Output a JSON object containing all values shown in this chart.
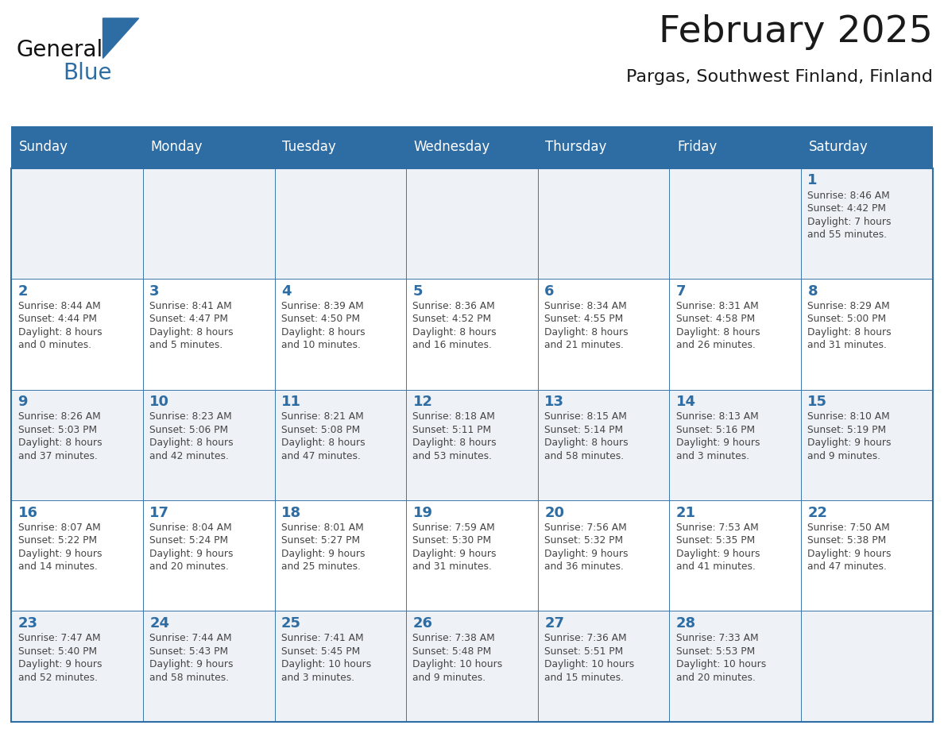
{
  "title": "February 2025",
  "subtitle": "Pargas, Southwest Finland, Finland",
  "days_of_week": [
    "Sunday",
    "Monday",
    "Tuesday",
    "Wednesday",
    "Thursday",
    "Friday",
    "Saturday"
  ],
  "header_bg": "#2e6da4",
  "header_text": "#ffffff",
  "cell_bg_odd": "#eef2f7",
  "cell_bg_even": "#ffffff",
  "border_color": "#2e6da4",
  "title_color": "#1a1a1a",
  "subtitle_color": "#1a1a1a",
  "day_num_color": "#2e6da4",
  "cell_text_color": "#444444",
  "logo_general_color": "#111111",
  "logo_blue_color": "#2e6da4",
  "calendar": [
    [
      null,
      null,
      null,
      null,
      null,
      null,
      {
        "day": 1,
        "sunrise": "8:46 AM",
        "sunset": "4:42 PM",
        "daylight_h": "7 hours",
        "daylight_m": "and 55 minutes."
      }
    ],
    [
      {
        "day": 2,
        "sunrise": "8:44 AM",
        "sunset": "4:44 PM",
        "daylight_h": "8 hours",
        "daylight_m": "and 0 minutes."
      },
      {
        "day": 3,
        "sunrise": "8:41 AM",
        "sunset": "4:47 PM",
        "daylight_h": "8 hours",
        "daylight_m": "and 5 minutes."
      },
      {
        "day": 4,
        "sunrise": "8:39 AM",
        "sunset": "4:50 PM",
        "daylight_h": "8 hours",
        "daylight_m": "and 10 minutes."
      },
      {
        "day": 5,
        "sunrise": "8:36 AM",
        "sunset": "4:52 PM",
        "daylight_h": "8 hours",
        "daylight_m": "and 16 minutes."
      },
      {
        "day": 6,
        "sunrise": "8:34 AM",
        "sunset": "4:55 PM",
        "daylight_h": "8 hours",
        "daylight_m": "and 21 minutes."
      },
      {
        "day": 7,
        "sunrise": "8:31 AM",
        "sunset": "4:58 PM",
        "daylight_h": "8 hours",
        "daylight_m": "and 26 minutes."
      },
      {
        "day": 8,
        "sunrise": "8:29 AM",
        "sunset": "5:00 PM",
        "daylight_h": "8 hours",
        "daylight_m": "and 31 minutes."
      }
    ],
    [
      {
        "day": 9,
        "sunrise": "8:26 AM",
        "sunset": "5:03 PM",
        "daylight_h": "8 hours",
        "daylight_m": "and 37 minutes."
      },
      {
        "day": 10,
        "sunrise": "8:23 AM",
        "sunset": "5:06 PM",
        "daylight_h": "8 hours",
        "daylight_m": "and 42 minutes."
      },
      {
        "day": 11,
        "sunrise": "8:21 AM",
        "sunset": "5:08 PM",
        "daylight_h": "8 hours",
        "daylight_m": "and 47 minutes."
      },
      {
        "day": 12,
        "sunrise": "8:18 AM",
        "sunset": "5:11 PM",
        "daylight_h": "8 hours",
        "daylight_m": "and 53 minutes."
      },
      {
        "day": 13,
        "sunrise": "8:15 AM",
        "sunset": "5:14 PM",
        "daylight_h": "8 hours",
        "daylight_m": "and 58 minutes."
      },
      {
        "day": 14,
        "sunrise": "8:13 AM",
        "sunset": "5:16 PM",
        "daylight_h": "9 hours",
        "daylight_m": "and 3 minutes."
      },
      {
        "day": 15,
        "sunrise": "8:10 AM",
        "sunset": "5:19 PM",
        "daylight_h": "9 hours",
        "daylight_m": "and 9 minutes."
      }
    ],
    [
      {
        "day": 16,
        "sunrise": "8:07 AM",
        "sunset": "5:22 PM",
        "daylight_h": "9 hours",
        "daylight_m": "and 14 minutes."
      },
      {
        "day": 17,
        "sunrise": "8:04 AM",
        "sunset": "5:24 PM",
        "daylight_h": "9 hours",
        "daylight_m": "and 20 minutes."
      },
      {
        "day": 18,
        "sunrise": "8:01 AM",
        "sunset": "5:27 PM",
        "daylight_h": "9 hours",
        "daylight_m": "and 25 minutes."
      },
      {
        "day": 19,
        "sunrise": "7:59 AM",
        "sunset": "5:30 PM",
        "daylight_h": "9 hours",
        "daylight_m": "and 31 minutes."
      },
      {
        "day": 20,
        "sunrise": "7:56 AM",
        "sunset": "5:32 PM",
        "daylight_h": "9 hours",
        "daylight_m": "and 36 minutes."
      },
      {
        "day": 21,
        "sunrise": "7:53 AM",
        "sunset": "5:35 PM",
        "daylight_h": "9 hours",
        "daylight_m": "and 41 minutes."
      },
      {
        "day": 22,
        "sunrise": "7:50 AM",
        "sunset": "5:38 PM",
        "daylight_h": "9 hours",
        "daylight_m": "and 47 minutes."
      }
    ],
    [
      {
        "day": 23,
        "sunrise": "7:47 AM",
        "sunset": "5:40 PM",
        "daylight_h": "9 hours",
        "daylight_m": "and 52 minutes."
      },
      {
        "day": 24,
        "sunrise": "7:44 AM",
        "sunset": "5:43 PM",
        "daylight_h": "9 hours",
        "daylight_m": "and 58 minutes."
      },
      {
        "day": 25,
        "sunrise": "7:41 AM",
        "sunset": "5:45 PM",
        "daylight_h": "10 hours",
        "daylight_m": "and 3 minutes."
      },
      {
        "day": 26,
        "sunrise": "7:38 AM",
        "sunset": "5:48 PM",
        "daylight_h": "10 hours",
        "daylight_m": "and 9 minutes."
      },
      {
        "day": 27,
        "sunrise": "7:36 AM",
        "sunset": "5:51 PM",
        "daylight_h": "10 hours",
        "daylight_m": "and 15 minutes."
      },
      {
        "day": 28,
        "sunrise": "7:33 AM",
        "sunset": "5:53 PM",
        "daylight_h": "10 hours",
        "daylight_m": "and 20 minutes."
      },
      null
    ]
  ],
  "figsize": [
    11.88,
    9.18
  ],
  "dpi": 100
}
